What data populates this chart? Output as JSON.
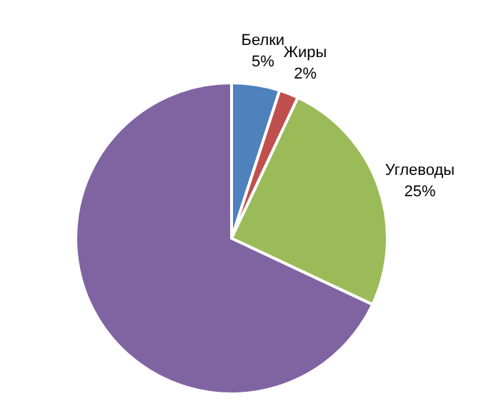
{
  "chart_data": {
    "type": "pie",
    "categories": [
      "Белки",
      "Жиры",
      "Углеводы",
      null
    ],
    "values": [
      5,
      2,
      25,
      68
    ],
    "value_labels": [
      "5%",
      "2%",
      "25%",
      null
    ],
    "colors": [
      "#4f81bd",
      "#c0504d",
      "#9bbb59",
      "#8064a2"
    ]
  }
}
